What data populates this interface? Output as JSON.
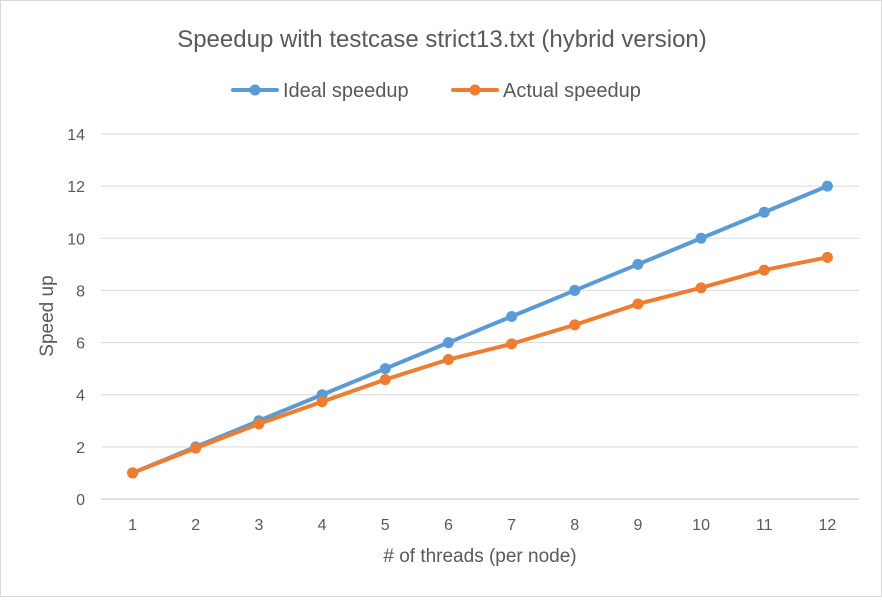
{
  "chart_data": {
    "type": "line",
    "title": "Speedup with testcase strict13.txt (hybrid version)",
    "xlabel": "# of threads (per node)",
    "ylabel": "Speed up",
    "categories": [
      "1",
      "2",
      "3",
      "4",
      "5",
      "6",
      "7",
      "8",
      "9",
      "10",
      "11",
      "12"
    ],
    "ylim": [
      0,
      14
    ],
    "yticks": [
      0,
      2,
      4,
      6,
      8,
      10,
      12,
      14
    ],
    "grid": true,
    "legend_position": "top",
    "series": [
      {
        "name": "Ideal speedup",
        "color": "#5b9bd5",
        "values": [
          1,
          2,
          3,
          4,
          5,
          6,
          7,
          8,
          9,
          10,
          11,
          12
        ]
      },
      {
        "name": "Actual speedup",
        "color": "#ed7d31",
        "values": [
          1,
          1.95,
          2.88,
          3.73,
          4.58,
          5.35,
          5.95,
          6.68,
          7.48,
          8.1,
          8.78,
          9.27
        ]
      }
    ]
  }
}
